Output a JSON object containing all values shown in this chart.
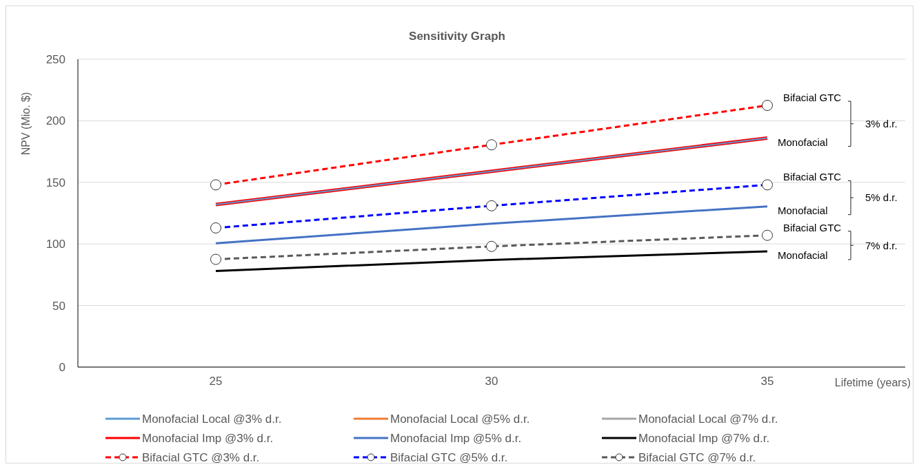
{
  "chart_data": {
    "type": "line",
    "title": "Sensitivity Graph",
    "xlabel": "Lifetime (years)",
    "ylabel": "NPV (Mio. $)",
    "categories": [
      "25",
      "30",
      "35"
    ],
    "ylim": [
      0,
      250
    ],
    "yticks": [
      0,
      50,
      100,
      150,
      200,
      250
    ],
    "grid": "y",
    "legend": "bottom",
    "series": [
      {
        "name": "Monofacial Local @3% d.r.",
        "color": "#5b9bd5",
        "values": [
          132,
          159,
          186
        ],
        "line_style": "solid",
        "marker": "none"
      },
      {
        "name": "Monofacial Local @5% d.r.",
        "color": "#ed7d31",
        "values": [
          null,
          null,
          null
        ],
        "line_style": "solid",
        "marker": "none"
      },
      {
        "name": "Monofacial Local @7% d.r.",
        "color": "#a5a5a5",
        "values": [
          null,
          null,
          null
        ],
        "line_style": "solid",
        "marker": "none"
      },
      {
        "name": "Monofacial Imp @3% d.r.",
        "color": "#ff0000",
        "values": [
          132,
          159,
          186
        ],
        "line_style": "solid",
        "marker": "none"
      },
      {
        "name": "Monofacial Imp @5% d.r.",
        "color": "#4472c4",
        "values": [
          100.5,
          116.5,
          130.5
        ],
        "line_style": "solid",
        "marker": "none"
      },
      {
        "name": "Monofacial Imp @7% d.r.",
        "color": "#000000",
        "values": [
          78,
          87,
          94
        ],
        "line_style": "solid",
        "marker": "none"
      },
      {
        "name": "Bifacial GTC @3% d.r.",
        "color": "#ff0000",
        "values": [
          148,
          180.5,
          212.5
        ],
        "line_style": "dashed",
        "marker": "circle"
      },
      {
        "name": "Bifacial GTC @5% d.r.",
        "color": "#0000ff",
        "values": [
          113,
          131,
          148
        ],
        "line_style": "dashed",
        "marker": "circle"
      },
      {
        "name": "Bifacial GTC @7% d.r.",
        "color": "#595959",
        "values": [
          87.5,
          98,
          107
        ],
        "line_style": "dashed",
        "marker": "circle"
      }
    ],
    "annotations": [
      {
        "text": "Bifacial GTC",
        "x": "35",
        "y": 212.5
      },
      {
        "text": "Monofacial",
        "x": "35",
        "y": 186
      },
      "3% d.r.",
      {
        "text": "Bifacial GTC",
        "x": "35",
        "y": 148
      },
      {
        "text": "Monofacial",
        "x": "35",
        "y": 130.5
      },
      "5% d.r.",
      {
        "text": "Bifacial GTC",
        "x": "35",
        "y": 107
      },
      {
        "text": "Monofacial",
        "x": "35",
        "y": 94
      },
      "7% d.r."
    ]
  }
}
